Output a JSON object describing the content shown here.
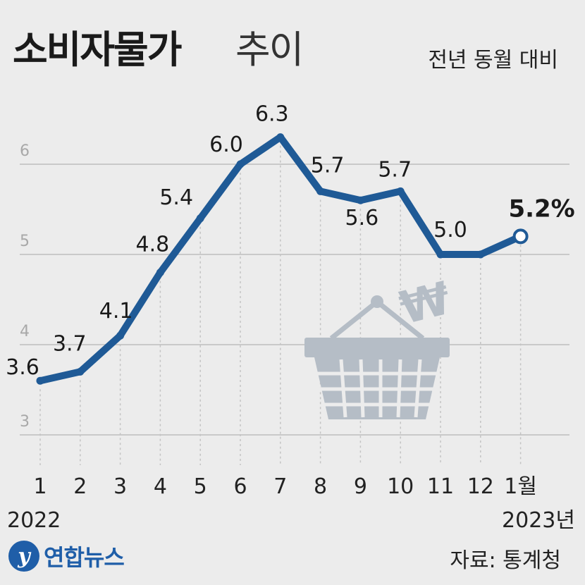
{
  "title": {
    "bold": "소비자물가",
    "light": "추이"
  },
  "subtitle": "전년 동월 대비",
  "logo": {
    "mark": "y",
    "text": "연합뉴스"
  },
  "source": "자료: 통계청",
  "colors": {
    "line": "#1f5a96",
    "grid": "#bdbdbd",
    "icon": "#b5bdc6",
    "background": "#ececec"
  },
  "icon": "shopping-basket-won-icon",
  "chart_data": {
    "type": "line",
    "categories": [
      "1",
      "2",
      "3",
      "4",
      "5",
      "6",
      "7",
      "8",
      "9",
      "10",
      "11",
      "12",
      "1월"
    ],
    "year_labels": [
      "2022",
      "2023년"
    ],
    "values": [
      3.6,
      3.7,
      4.1,
      4.8,
      5.4,
      6.0,
      6.3,
      5.7,
      5.6,
      5.7,
      5.0,
      5.0,
      5.2
    ],
    "data_labels": [
      "3.6",
      "3.7",
      "4.1",
      "4.8",
      "5.4",
      "6.0",
      "6.3",
      "5.7",
      "5.6",
      "5.7",
      "5.0",
      "",
      "5.2%"
    ],
    "yticks": [
      3,
      4,
      5,
      6
    ],
    "ylim": [
      3,
      6.5
    ],
    "grid": true,
    "xlabel": "",
    "ylabel": ""
  }
}
